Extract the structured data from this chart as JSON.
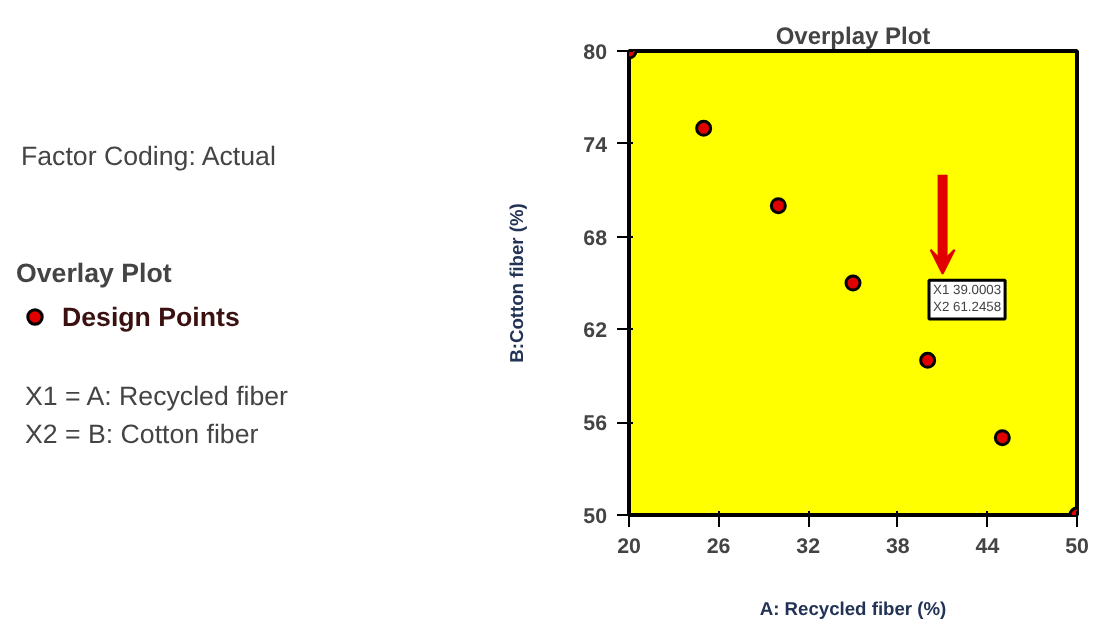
{
  "chart_data": {
    "type": "scatter",
    "title": "Overplay Plot",
    "xlabel": "A: Recycled fiber (%)",
    "ylabel": "B:Cotton fiber (%)",
    "legend_title": "Overlay Plot",
    "legend": "left",
    "marker": "circle",
    "grid": false,
    "x": [
      20,
      25,
      30,
      35,
      40,
      45,
      50
    ],
    "series": [
      {
        "name": "Design Points",
        "color": "#e00000",
        "values": [
          80,
          75,
          70,
          65,
          60,
          55,
          50
        ]
      }
    ],
    "xlim": [
      20,
      50
    ],
    "xticks": [
      20,
      26,
      32,
      38,
      44,
      50
    ],
    "ylim": [
      50,
      80
    ],
    "yticks": [
      50,
      56,
      62,
      68,
      74,
      80
    ],
    "annotations": [
      "Factor Coding: Actual",
      "X1 = A: Recycled fiber",
      "X2 = B: Cotton fiber",
      "X1 39.0003\nX2 61.2458"
    ]
  }
}
